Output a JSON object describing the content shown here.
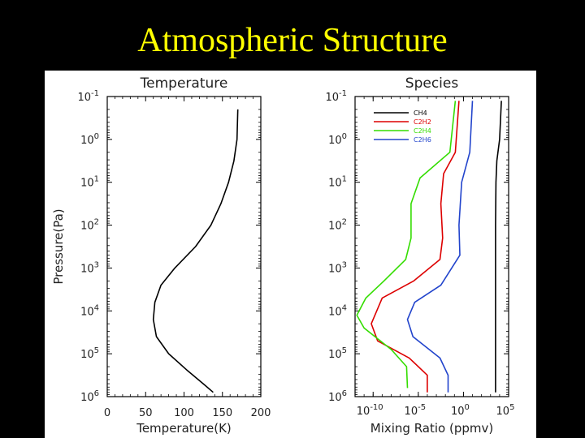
{
  "slide": {
    "title": "Atmospheric Structure"
  },
  "chart_data": [
    {
      "type": "line",
      "title": "Temperature",
      "xlabel": "Temperature(K)",
      "ylabel": "Pressure(Pa)",
      "xlim": [
        0,
        200
      ],
      "ylog": true,
      "ylim_exp": [
        -1,
        6
      ],
      "y_inverted": true,
      "xticks": [
        "0",
        "50",
        "100",
        "150",
        "200"
      ],
      "yticks": [
        {
          "base": "10",
          "exp": "-1"
        },
        {
          "base": "10",
          "exp": "0"
        },
        {
          "base": "10",
          "exp": "1"
        },
        {
          "base": "10",
          "exp": "2"
        },
        {
          "base": "10",
          "exp": "3"
        },
        {
          "base": "10",
          "exp": "4"
        },
        {
          "base": "10",
          "exp": "5"
        },
        {
          "base": "10",
          "exp": "6"
        }
      ],
      "grid": false,
      "series": [
        {
          "color": "#000000",
          "points": [
            {
              "x": 170,
              "log10_pressure": -0.7
            },
            {
              "x": 169,
              "log10_pressure": 0
            },
            {
              "x": 165,
              "log10_pressure": 0.5
            },
            {
              "x": 158,
              "log10_pressure": 1
            },
            {
              "x": 148,
              "log10_pressure": 1.5
            },
            {
              "x": 135,
              "log10_pressure": 2
            },
            {
              "x": 115,
              "log10_pressure": 2.5
            },
            {
              "x": 88,
              "log10_pressure": 3
            },
            {
              "x": 70,
              "log10_pressure": 3.4
            },
            {
              "x": 62,
              "log10_pressure": 3.8
            },
            {
              "x": 60,
              "log10_pressure": 4.2
            },
            {
              "x": 64,
              "log10_pressure": 4.6
            },
            {
              "x": 80,
              "log10_pressure": 5
            },
            {
              "x": 105,
              "log10_pressure": 5.4
            },
            {
              "x": 125,
              "log10_pressure": 5.7
            },
            {
              "x": 138,
              "log10_pressure": 5.9
            }
          ]
        }
      ]
    },
    {
      "type": "line",
      "title": "Species",
      "xlabel": "Mixing Ratio (ppmv)",
      "ylabel": "",
      "xlog": true,
      "xlim_exp": [
        -12,
        5
      ],
      "ylog": true,
      "ylim_exp": [
        -1,
        6
      ],
      "y_inverted": true,
      "xticks": [
        {
          "base": "10",
          "exp": "-10"
        },
        {
          "base": "10",
          "exp": "-5"
        },
        {
          "base": "10",
          "exp": "0"
        },
        {
          "base": "10",
          "exp": "5"
        }
      ],
      "yticks": [
        {
          "base": "10",
          "exp": "-1"
        },
        {
          "base": "10",
          "exp": "0"
        },
        {
          "base": "10",
          "exp": "1"
        },
        {
          "base": "10",
          "exp": "2"
        },
        {
          "base": "10",
          "exp": "3"
        },
        {
          "base": "10",
          "exp": "4"
        },
        {
          "base": "10",
          "exp": "5"
        },
        {
          "base": "10",
          "exp": "6"
        }
      ],
      "legend_position": "top-center",
      "grid": false,
      "series": [
        {
          "name": "CH4",
          "color": "#000000",
          "points": [
            {
              "log10_x": 4.2,
              "log10_pressure": -0.9
            },
            {
              "log10_x": 4.0,
              "log10_pressure": 0
            },
            {
              "log10_x": 3.7,
              "log10_pressure": 0.5
            },
            {
              "log10_x": 3.6,
              "log10_pressure": 1
            },
            {
              "log10_x": 3.55,
              "log10_pressure": 2
            },
            {
              "log10_x": 3.55,
              "log10_pressure": 3
            },
            {
              "log10_x": 3.55,
              "log10_pressure": 4
            },
            {
              "log10_x": 3.55,
              "log10_pressure": 5
            },
            {
              "log10_x": 3.55,
              "log10_pressure": 5.9
            }
          ]
        },
        {
          "name": "C2H2",
          "color": "#dd0000",
          "points": [
            {
              "log10_x": -0.5,
              "log10_pressure": -0.9
            },
            {
              "log10_x": -0.9,
              "log10_pressure": 0.3
            },
            {
              "log10_x": -2.2,
              "log10_pressure": 0.8
            },
            {
              "log10_x": -2.5,
              "log10_pressure": 1.5
            },
            {
              "log10_x": -2.3,
              "log10_pressure": 2.3
            },
            {
              "log10_x": -2.6,
              "log10_pressure": 2.8
            },
            {
              "log10_x": -5.5,
              "log10_pressure": 3.3
            },
            {
              "log10_x": -9,
              "log10_pressure": 3.7
            },
            {
              "log10_x": -10.2,
              "log10_pressure": 4.3
            },
            {
              "log10_x": -9.5,
              "log10_pressure": 4.7
            },
            {
              "log10_x": -6,
              "log10_pressure": 5.1
            },
            {
              "log10_x": -4,
              "log10_pressure": 5.5
            },
            {
              "log10_x": -4,
              "log10_pressure": 5.9
            }
          ]
        },
        {
          "name": "C2H4",
          "color": "#33dd00",
          "points": [
            {
              "log10_x": -0.9,
              "log10_pressure": -0.9
            },
            {
              "log10_x": -1.5,
              "log10_pressure": 0.3
            },
            {
              "log10_x": -4.8,
              "log10_pressure": 0.9
            },
            {
              "log10_x": -5.8,
              "log10_pressure": 1.5
            },
            {
              "log10_x": -5.8,
              "log10_pressure": 2.3
            },
            {
              "log10_x": -6.4,
              "log10_pressure": 2.8
            },
            {
              "log10_x": -8.8,
              "log10_pressure": 3.3
            },
            {
              "log10_x": -10.8,
              "log10_pressure": 3.7
            },
            {
              "log10_x": -11.8,
              "log10_pressure": 4.1
            },
            {
              "log10_x": -11.0,
              "log10_pressure": 4.4
            },
            {
              "log10_x": -8,
              "log10_pressure": 4.9
            },
            {
              "log10_x": -6.3,
              "log10_pressure": 5.3
            },
            {
              "log10_x": -6.2,
              "log10_pressure": 5.8
            }
          ]
        },
        {
          "name": "C2H6",
          "color": "#2244cc",
          "points": [
            {
              "log10_x": 1.0,
              "log10_pressure": -0.9
            },
            {
              "log10_x": 0.7,
              "log10_pressure": 0.3
            },
            {
              "log10_x": -0.2,
              "log10_pressure": 1
            },
            {
              "log10_x": -0.5,
              "log10_pressure": 2
            },
            {
              "log10_x": -0.4,
              "log10_pressure": 2.7
            },
            {
              "log10_x": -2.5,
              "log10_pressure": 3.4
            },
            {
              "log10_x": -5.4,
              "log10_pressure": 3.8
            },
            {
              "log10_x": -6.2,
              "log10_pressure": 4.2
            },
            {
              "log10_x": -5.6,
              "log10_pressure": 4.6
            },
            {
              "log10_x": -2.6,
              "log10_pressure": 5.1
            },
            {
              "log10_x": -1.7,
              "log10_pressure": 5.5
            },
            {
              "log10_x": -1.7,
              "log10_pressure": 5.9
            }
          ]
        }
      ]
    }
  ]
}
